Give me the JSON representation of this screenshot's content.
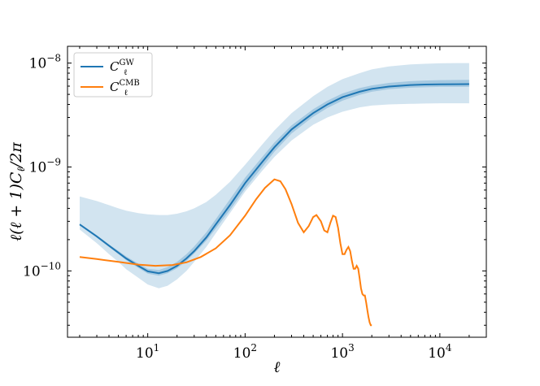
{
  "chart_data": {
    "type": "line",
    "title": "",
    "xlabel": "ℓ",
    "ylabel": "ℓ(ℓ + 1)C",
    "ylabel_sub": "ℓ",
    "ylabel_tail": "/2π",
    "xscale": "log",
    "yscale": "log",
    "xlim": [
      1.5,
      30000
    ],
    "ylim": [
      2.3e-11,
      1.45e-08
    ],
    "grid": false,
    "legend_position": "top-left",
    "x_ticks": [
      {
        "value": 10,
        "base": "10",
        "exp": "1"
      },
      {
        "value": 100,
        "base": "10",
        "exp": "2"
      },
      {
        "value": 1000,
        "base": "10",
        "exp": "3"
      },
      {
        "value": 10000,
        "base": "10",
        "exp": "4"
      }
    ],
    "y_ticks": [
      {
        "value": 1e-10,
        "base": "10",
        "exp": "−10"
      },
      {
        "value": 1e-09,
        "base": "10",
        "exp": "−9"
      },
      {
        "value": 1e-08,
        "base": "10",
        "exp": "−8"
      }
    ],
    "series": [
      {
        "name": "C",
        "name_sub": "ℓ",
        "name_sup": "GW",
        "color": "#1f77b4",
        "x": [
          2,
          3,
          4,
          5,
          6,
          8,
          10,
          13,
          16,
          20,
          25,
          30,
          40,
          50,
          70,
          100,
          150,
          200,
          300,
          500,
          700,
          1000,
          1500,
          2000,
          3000,
          5000,
          7000,
          10000,
          15000,
          20000
        ],
        "y": [
          2.8e-10,
          2.15e-10,
          1.75e-10,
          1.5e-10,
          1.32e-10,
          1.12e-10,
          9.9e-11,
          9.5e-11,
          1e-10,
          1.12e-10,
          1.32e-10,
          1.55e-10,
          2.1e-10,
          2.8e-10,
          4.3e-10,
          7e-10,
          1.12e-09,
          1.55e-09,
          2.3e-09,
          3.3e-09,
          4e-09,
          4.7e-09,
          5.3e-09,
          5.65e-09,
          5.95e-09,
          6.15e-09,
          6.22e-09,
          6.25e-09,
          6.27e-09,
          6.28e-09
        ],
        "band_outer_lower": [
          2.5e-10,
          1.85e-10,
          1.45e-10,
          1.22e-10,
          1.04e-10,
          8.6e-11,
          7.4e-11,
          6.8e-11,
          7.2e-11,
          8.3e-11,
          1e-10,
          1.22e-10,
          1.7e-10,
          2.3e-10,
          3.6e-10,
          5.8e-10,
          9.2e-10,
          1.25e-09,
          1.8e-09,
          2.55e-09,
          3e-09,
          3.4e-09,
          3.75e-09,
          3.9e-09,
          4e-09,
          4.05e-09,
          4.08e-09,
          4.1e-09,
          4.1e-09,
          4.1e-09
        ],
        "band_outer_upper": [
          5.2e-10,
          4.7e-10,
          4.3e-10,
          4e-10,
          3.8e-10,
          3.6e-10,
          3.5e-10,
          3.45e-10,
          3.45e-10,
          3.55e-10,
          3.75e-10,
          4e-10,
          4.6e-10,
          5.4e-10,
          7.2e-10,
          1.05e-09,
          1.65e-09,
          2.25e-09,
          3.3e-09,
          4.8e-09,
          5.9e-09,
          7e-09,
          8e-09,
          8.7e-09,
          9.3e-09,
          9.7e-09,
          9.85e-09,
          9.95e-09,
          1e-08,
          1e-08
        ],
        "band_inner_lower": [
          2.75e-10,
          2.1e-10,
          1.7e-10,
          1.45e-10,
          1.27e-10,
          1.07e-10,
          9.4e-11,
          9e-11,
          9.5e-11,
          1.06e-10,
          1.25e-10,
          1.47e-10,
          1.95e-10,
          2.55e-10,
          3.85e-10,
          6.2e-10,
          1e-09,
          1.4e-09,
          2.1e-09,
          3.05e-09,
          3.7e-09,
          4.35e-09,
          4.95e-09,
          5.3e-09,
          5.6e-09,
          5.8e-09,
          5.85e-09,
          5.9e-09,
          5.9e-09,
          5.9e-09
        ],
        "band_inner_upper": [
          2.85e-10,
          2.2e-10,
          1.8e-10,
          1.56e-10,
          1.38e-10,
          1.18e-10,
          1.05e-10,
          1.02e-10,
          1.09e-10,
          1.22e-10,
          1.45e-10,
          1.72e-10,
          2.35e-10,
          3.15e-10,
          4.9e-10,
          7.9e-10,
          1.25e-09,
          1.72e-09,
          2.52e-09,
          3.6e-09,
          4.35e-09,
          5.1e-09,
          5.75e-09,
          6.1e-09,
          6.45e-09,
          6.7e-09,
          6.8e-09,
          6.85e-09,
          6.88e-09,
          6.9e-09
        ]
      },
      {
        "name": "C",
        "name_sub": "ℓ",
        "name_sup": "CMB",
        "color": "#ff7f0e",
        "x": [
          2,
          3,
          5,
          8,
          12,
          18,
          25,
          35,
          50,
          70,
          100,
          130,
          160,
          200,
          230,
          260,
          300,
          350,
          400,
          450,
          500,
          540,
          600,
          650,
          700,
          750,
          800,
          850,
          900,
          950,
          1000,
          1050,
          1100,
          1150,
          1200,
          1250,
          1300,
          1350,
          1400,
          1450,
          1500,
          1550,
          1600,
          1650,
          1700,
          1750,
          1800,
          1850,
          1900,
          1950,
          2000
        ],
        "y": [
          1.36e-10,
          1.3e-10,
          1.22e-10,
          1.15e-10,
          1.12e-10,
          1.14e-10,
          1.21e-10,
          1.36e-10,
          1.65e-10,
          2.2e-10,
          3.4e-10,
          4.9e-10,
          6.3e-10,
          7.6e-10,
          7.3e-10,
          6.1e-10,
          4.4e-10,
          2.9e-10,
          2.35e-10,
          2.7e-10,
          3.3e-10,
          3.45e-10,
          3e-10,
          2.45e-10,
          2.35e-10,
          2.9e-10,
          3.4e-10,
          3.3e-10,
          2.6e-10,
          1.85e-10,
          1.45e-10,
          1.45e-10,
          1.6e-10,
          1.7e-10,
          1.55e-10,
          1.25e-10,
          1.05e-10,
          1.05e-10,
          1.12e-10,
          1.05e-10,
          8.5e-11,
          6.8e-11,
          6e-11,
          5.8e-11,
          5.8e-11,
          5e-11,
          4.2e-11,
          3.6e-11,
          3.2e-11,
          3e-11,
          3e-11
        ]
      }
    ]
  }
}
